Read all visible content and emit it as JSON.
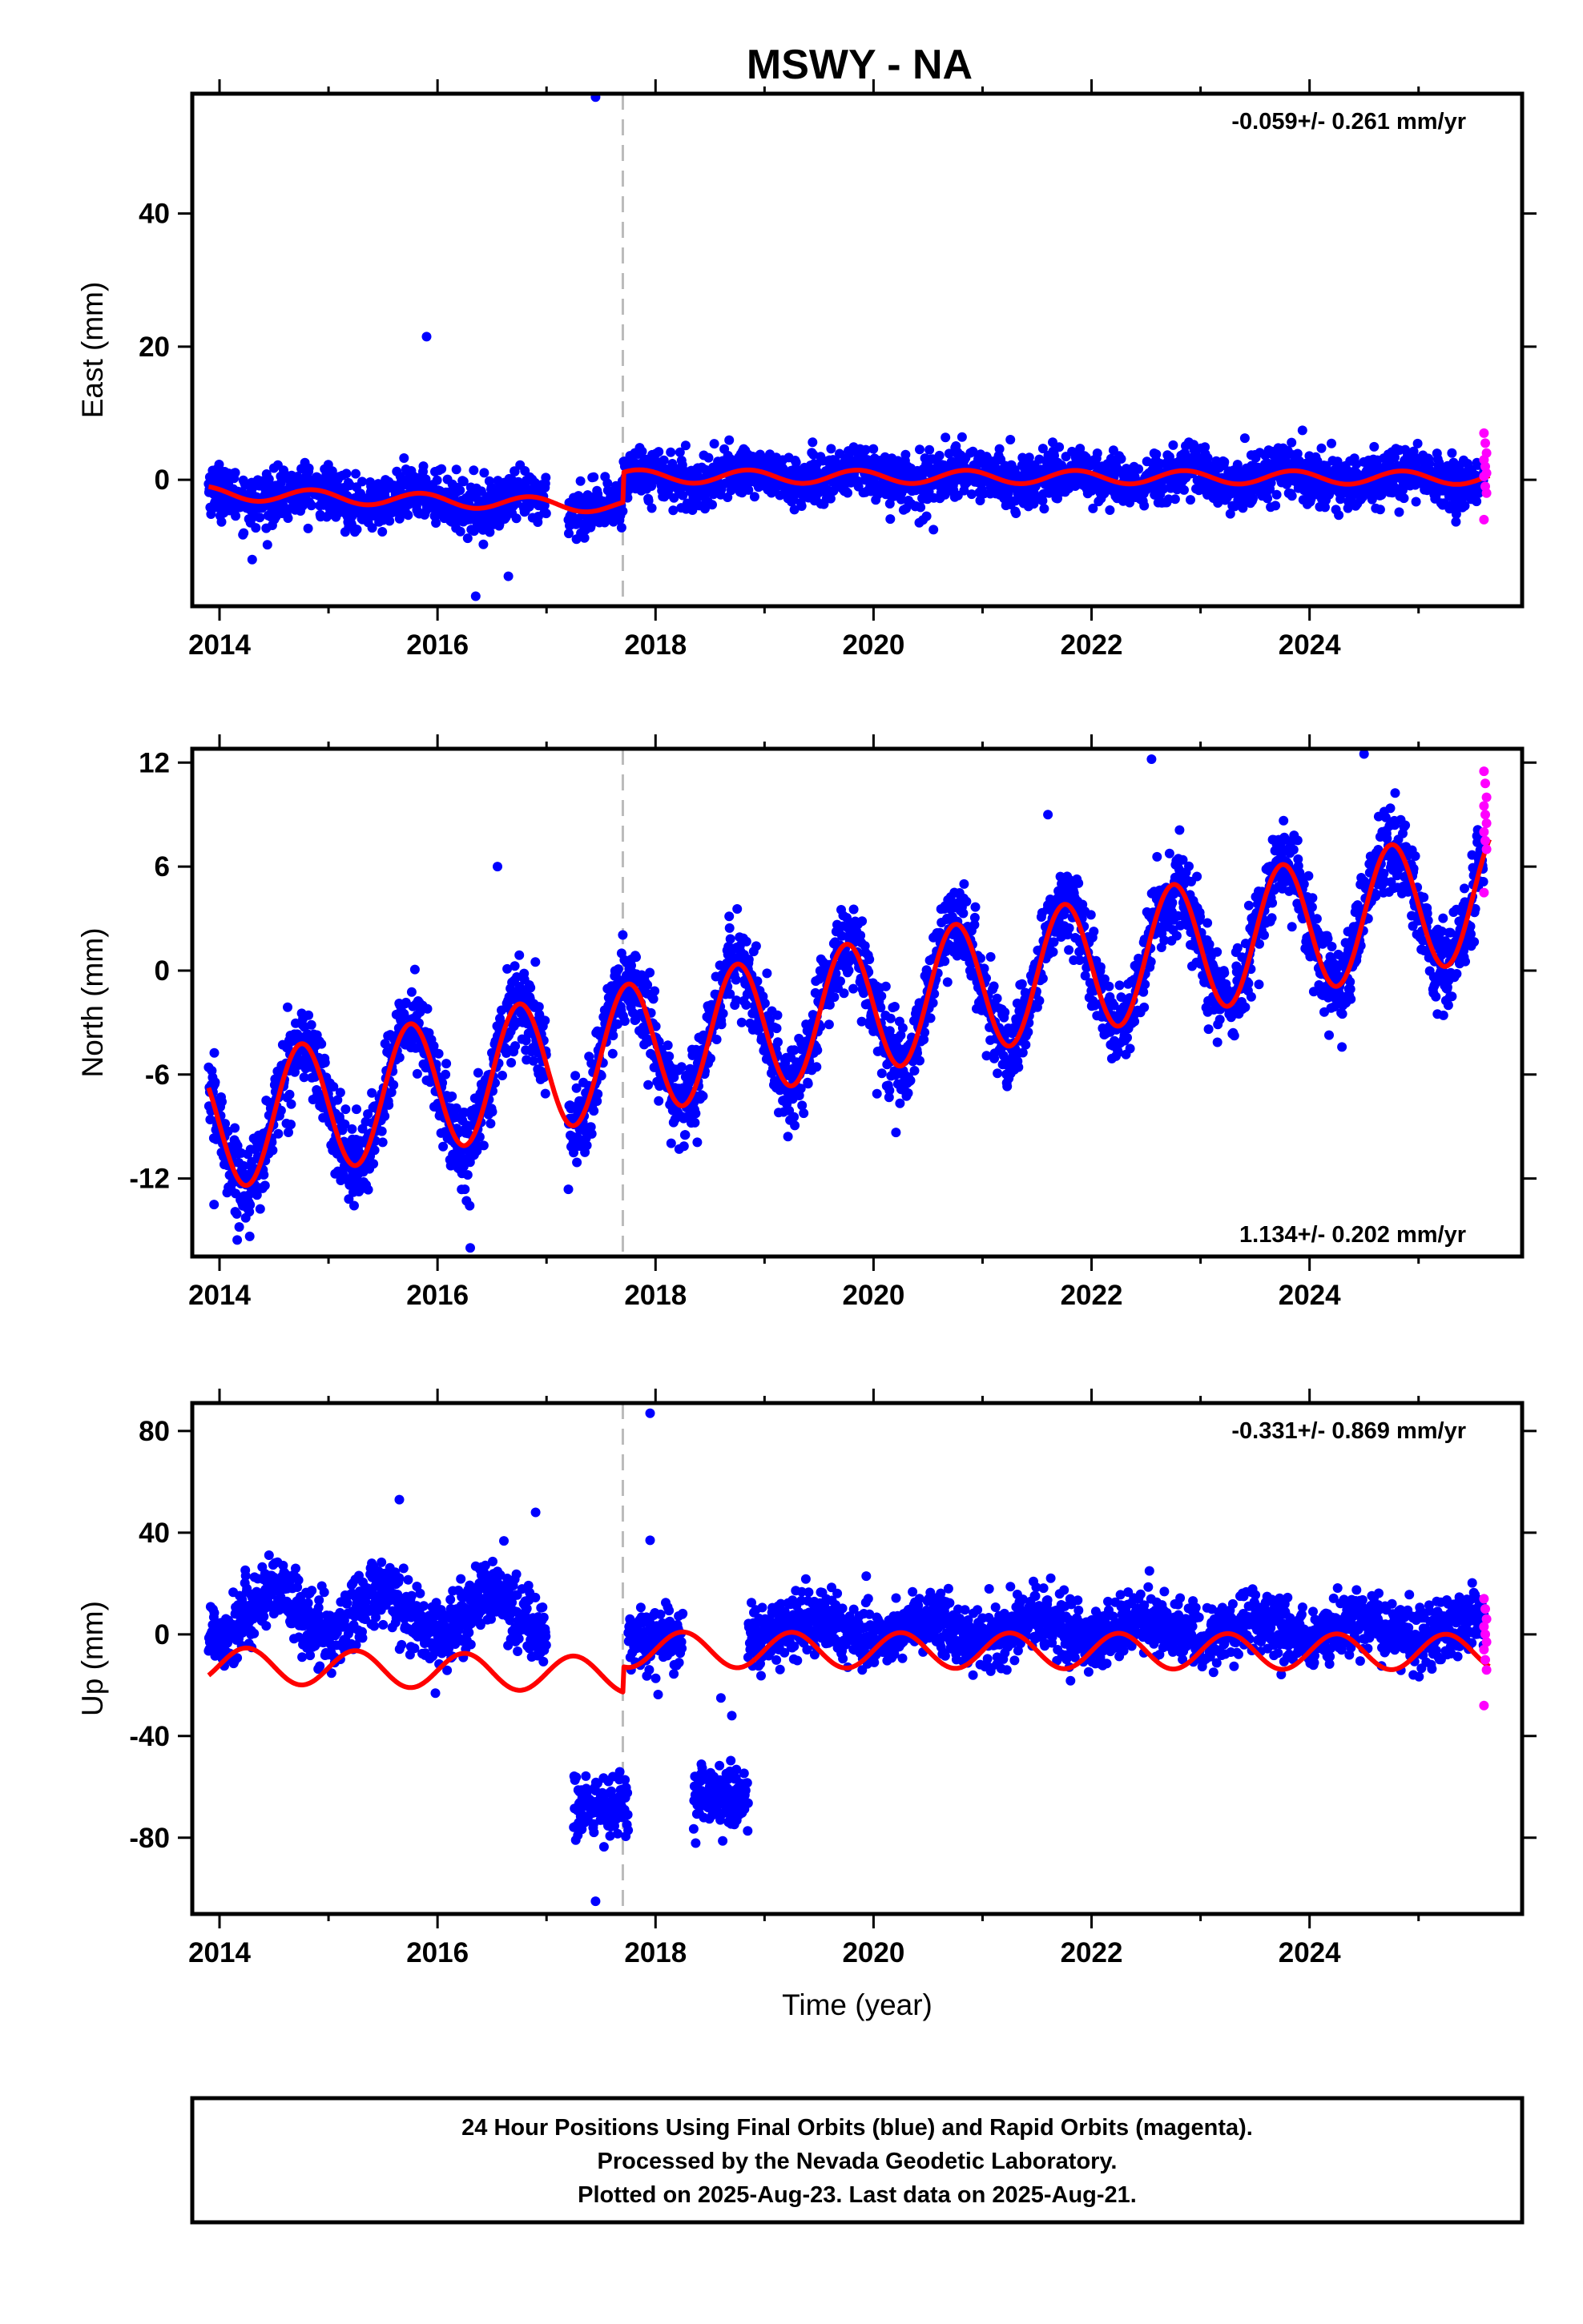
{
  "chart_data": {
    "title": "MSWY - NA",
    "type": "scatter",
    "xlabel": "Time (year)",
    "xlim": [
      2013.75,
      2025.95
    ],
    "x_ticks": [
      2014,
      2016,
      2018,
      2020,
      2022,
      2024
    ],
    "x_tick_labels": [
      "2014",
      "2016",
      "2018",
      "2020",
      "2022",
      "2024"
    ],
    "equipment_change_year": 2017.7,
    "colors": {
      "final_orbits": "#0000ff",
      "rapid_orbits": "#ff00ff",
      "model_fit": "#ff0000",
      "equipment_change": "#bbbbbb"
    },
    "panels": [
      {
        "name": "east",
        "ylabel": "East (mm)",
        "ylim": [
          -19,
          58
        ],
        "y_ticks": [
          0,
          20,
          40
        ],
        "y_tick_labels": [
          "0",
          "20",
          "40"
        ],
        "rate_text": "-0.059+/- 0.261 mm/yr",
        "rate_position": "top-right",
        "model": {
          "segments": [
            {
              "t0": 2013.9,
              "t1": 2017.7,
              "base_start": -2.0,
              "base_end": -4.0,
              "annual_amp": 1.0,
              "phase": 0.6
            },
            {
              "t0": 2017.7,
              "t1": 2025.65,
              "base_start": 0.5,
              "base_end": 0.3,
              "annual_amp": 1.0,
              "phase": 0.6
            }
          ]
        },
        "observations": {
          "noise_sd": 1.9,
          "gaps": [
            [
              2017.0,
              2017.2
            ]
          ],
          "outliers": [
            [
              2017.45,
              57.5
            ],
            [
              2015.9,
              21.5
            ],
            [
              2016.35,
              -17.5
            ],
            [
              2016.65,
              -14.5
            ],
            [
              2014.3,
              -12.0
            ],
            [
              2020.55,
              -7.5
            ]
          ]
        },
        "rapid_values": [
          7.0,
          5.5,
          4.0,
          3.0,
          2.0,
          1.0,
          0.5,
          -1.0,
          -2.0,
          -6.0
        ]
      },
      {
        "name": "north",
        "ylabel": "North (mm)",
        "ylim": [
          -16.5,
          12.8
        ],
        "y_ticks": [
          -12,
          -6,
          0,
          6,
          12
        ],
        "y_tick_labels": [
          "-12",
          "-6",
          "0",
          "6",
          "12"
        ],
        "rate_text": "1.134+/- 0.202 mm/yr",
        "rate_position": "bottom-right",
        "model": {
          "segments": [
            {
              "t0": 2013.9,
              "t1": 2025.65,
              "base_start": -9.0,
              "base_end": 4.5,
              "annual_amp": 3.8,
              "phase": 0.5
            }
          ]
        },
        "observations": {
          "noise_sd": 1.2,
          "gaps": [
            [
              2017.0,
              2017.2
            ]
          ],
          "outliers": [
            [
              2016.3,
              -16.0
            ],
            [
              2013.95,
              -13.5
            ],
            [
              2016.55,
              6.0
            ],
            [
              2021.6,
              9.0
            ],
            [
              2022.55,
              12.2
            ],
            [
              2024.5,
              12.5
            ]
          ]
        },
        "rapid_values": [
          11.5,
          10.8,
          10.0,
          9.5,
          9.0,
          8.5,
          8.0,
          7.5,
          7.0,
          4.5
        ]
      },
      {
        "name": "up",
        "ylabel": "Up (mm)",
        "ylim": [
          -110,
          91
        ],
        "y_ticks": [
          -80,
          -40,
          0,
          40,
          80
        ],
        "y_tick_labels": [
          "-80",
          "-40",
          "0",
          "40",
          "80"
        ],
        "rate_text": "-0.331+/- 0.869 mm/yr",
        "rate_position": "top-right",
        "model": {
          "segments": [
            {
              "t0": 2013.9,
              "t1": 2017.7,
              "base_start": -12.0,
              "base_end": -16.0,
              "annual_amp": 7.0,
              "phase": 0.0
            },
            {
              "t0": 2017.7,
              "t1": 2025.65,
              "base_start": -6.0,
              "base_end": -7.0,
              "annual_amp": 7.0,
              "phase": 0.0
            }
          ]
        },
        "observations": {
          "noise_sd": 6.0,
          "clusters": [
            {
              "t0": 2013.9,
              "t1": 2017.0,
              "level": 8.0,
              "annual_amp": 8.0,
              "noise_sd": 7.0
            },
            {
              "t0": 2017.25,
              "t1": 2017.75,
              "level": -68.0,
              "annual_amp": 0.0,
              "noise_sd": 6.0
            },
            {
              "t0": 2018.35,
              "t1": 2018.85,
              "level": -65.0,
              "annual_amp": 0.0,
              "noise_sd": 6.0
            },
            {
              "t0": 2017.75,
              "t1": 2018.25,
              "level": 0.0,
              "annual_amp": 3.0,
              "noise_sd": 6.0
            },
            {
              "t0": 2018.85,
              "t1": 2025.6,
              "level": 2.0,
              "annual_amp": 4.0,
              "noise_sd": 6.0
            }
          ],
          "outliers": [
            [
              2017.95,
              87.0
            ],
            [
              2017.45,
              -105.0
            ],
            [
              2015.65,
              53.0
            ],
            [
              2016.9,
              48.0
            ],
            [
              2017.95,
              37.0
            ],
            [
              2018.7,
              -32.0
            ],
            [
              2018.6,
              -25.0
            ]
          ]
        },
        "rapid_values": [
          14.0,
          10.0,
          6.0,
          3.0,
          0.0,
          -3.0,
          -6.0,
          -10.0,
          -14.0,
          -28.0
        ]
      }
    ]
  },
  "caption": {
    "line1": "24 Hour Positions Using Final Orbits (blue) and Rapid Orbits (magenta).",
    "line2": "Processed by the Nevada Geodetic Laboratory.",
    "line3": "Plotted on 2025-Aug-23. Last data on 2025-Aug-21."
  }
}
